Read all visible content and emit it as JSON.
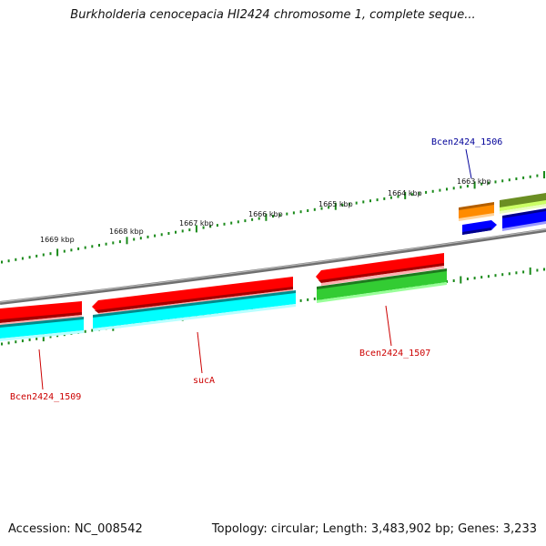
{
  "title": "Burkholderia cenocepacia HI2424 chromosome 1, complete seque...",
  "footer": {
    "accession": "Accession: NC_008542",
    "summary": "Topology: circular; Length: 3,483,902 bp; Genes: 3,233"
  },
  "colors": {
    "backbone": "#808080",
    "tick": "#1a8a1a",
    "red": "#ff0000",
    "cyan": "#00ffff",
    "green": "#33cc33",
    "orange": "#ff8c00",
    "blue": "#0000ff",
    "olive": "#6b8e23",
    "lime": "#ccff66",
    "label_red": "#cc0000",
    "label_blue": "#000099"
  },
  "scale_labels": [
    "1669 kbp",
    "1668 kbp",
    "1667 kbp",
    "1666 kbp",
    "1665 kbp",
    "1664 kbp",
    "1663 kbp"
  ],
  "gene_labels": {
    "bcen1506": "Bcen2424_1506",
    "bcen1507": "Bcen2424_1507",
    "suca": "sucA",
    "bcen1509": "Bcen2424_1509"
  }
}
